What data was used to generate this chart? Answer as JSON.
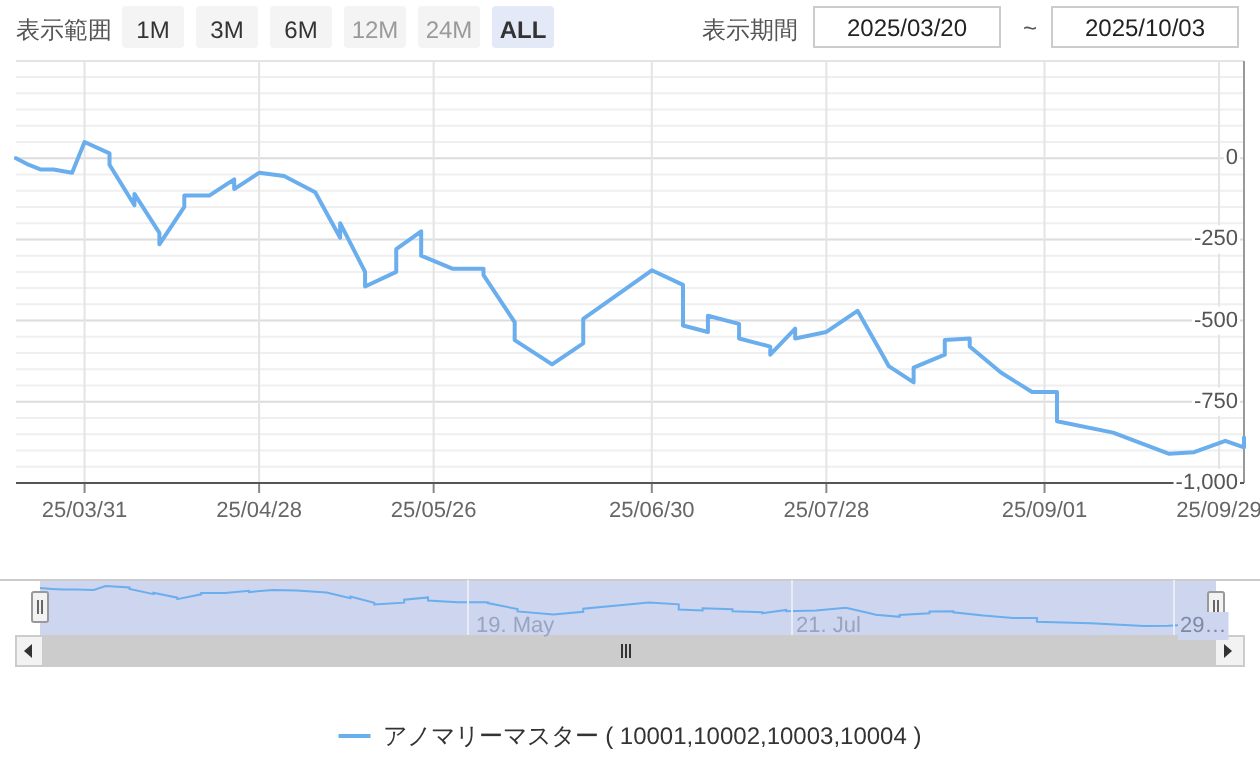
{
  "chart_data": {
    "type": "line",
    "x": [
      "2025-03-20",
      "2025-03-22",
      "2025-03-24",
      "2025-03-26",
      "2025-03-29",
      "2025-03-31",
      "2025-04-04",
      "2025-04-04",
      "2025-04-08",
      "2025-04-08",
      "2025-04-12",
      "2025-04-12",
      "2025-04-16",
      "2025-04-16",
      "2025-04-20",
      "2025-04-24",
      "2025-04-24",
      "2025-04-28",
      "2025-05-02",
      "2025-05-07",
      "2025-05-11",
      "2025-05-11",
      "2025-05-15",
      "2025-05-15",
      "2025-05-20",
      "2025-05-20",
      "2025-05-24",
      "2025-05-24",
      "2025-05-29",
      "2025-06-03",
      "2025-06-03",
      "2025-06-08",
      "2025-06-08",
      "2025-06-14",
      "2025-06-19",
      "2025-06-19",
      "2025-06-30",
      "2025-07-05",
      "2025-07-05",
      "2025-07-09",
      "2025-07-09",
      "2025-07-14",
      "2025-07-14",
      "2025-07-19",
      "2025-07-19",
      "2025-07-23",
      "2025-07-23",
      "2025-07-28",
      "2025-08-02",
      "2025-08-06",
      "2025-08-07",
      "2025-08-11",
      "2025-08-11",
      "2025-08-16",
      "2025-08-16",
      "2025-08-20",
      "2025-08-20",
      "2025-08-25",
      "2025-08-30",
      "2025-09-03",
      "2025-09-03",
      "2025-09-12",
      "2025-09-21",
      "2025-09-25",
      "2025-09-30",
      "2025-10-03",
      "2025-10-03"
    ],
    "series": [
      {
        "name": "アノマリーマスター ( 10001,10002,10003,10004 )",
        "color": "#6aaeee",
        "values": [
          0,
          -20,
          -35,
          -35,
          -45,
          50,
          15,
          -20,
          -145,
          -110,
          -230,
          -265,
          -150,
          -115,
          -115,
          -65,
          -95,
          -45,
          -55,
          -105,
          -245,
          -200,
          -350,
          -395,
          -350,
          -280,
          -225,
          -300,
          -340,
          -340,
          -360,
          -505,
          -560,
          -635,
          -570,
          -495,
          -345,
          -390,
          -515,
          -535,
          -485,
          -510,
          -555,
          -580,
          -605,
          -525,
          -555,
          -535,
          -470,
          -605,
          -640,
          -690,
          -645,
          -605,
          -560,
          -555,
          -580,
          -660,
          -720,
          -720,
          -810,
          -845,
          -910,
          -905,
          -870,
          -890,
          -860
        ]
      }
    ],
    "xlim": [
      "2025-03-20",
      "2025-10-03"
    ],
    "xticks": [
      {
        "value": "2025-03-31",
        "label": "25/03/31"
      },
      {
        "value": "2025-04-28",
        "label": "25/04/28"
      },
      {
        "value": "2025-05-26",
        "label": "25/05/26"
      },
      {
        "value": "2025-06-30",
        "label": "25/06/30"
      },
      {
        "value": "2025-07-28",
        "label": "25/07/28"
      },
      {
        "value": "2025-09-01",
        "label": "25/09/01"
      },
      {
        "value": "2025-09-29",
        "label": "25/09/29"
      }
    ],
    "ylim": [
      -1000,
      250
    ],
    "yticks": [
      {
        "value": 250,
        "label": null
      },
      {
        "value": 200,
        "label": null
      },
      {
        "value": 150,
        "label": null
      },
      {
        "value": 100,
        "label": null
      },
      {
        "value": 50,
        "label": null
      },
      0,
      {
        "value": -50,
        "label": null
      },
      {
        "value": -100,
        "label": null
      },
      {
        "value": -150,
        "label": null
      },
      {
        "value": -200,
        "label": null
      },
      -250,
      {
        "value": -300,
        "label": null
      },
      {
        "value": -350,
        "label": null
      },
      {
        "value": -400,
        "label": null
      },
      {
        "value": -450,
        "label": null
      },
      -500,
      {
        "value": -550,
        "label": null
      },
      {
        "value": -600,
        "label": null
      },
      {
        "value": -650,
        "label": null
      },
      {
        "value": -700,
        "label": null
      },
      -750,
      {
        "value": -800,
        "label": null
      },
      {
        "value": -850,
        "label": null
      },
      {
        "value": -900,
        "label": null
      },
      {
        "value": -950,
        "label": null
      },
      {
        "value": -1000,
        "label": "-1,000"
      }
    ],
    "grid": true,
    "legend": "bottom",
    "marker": "none",
    "line_style": "solid",
    "annotations": [
      "表示範囲",
      "1M",
      "3M",
      "6M",
      "12M",
      "24M",
      "ALL",
      "表示期間",
      "2025/03/20",
      "~",
      "2025/10/03",
      "19. May",
      "21. Jul",
      "29…"
    ]
  }
}
